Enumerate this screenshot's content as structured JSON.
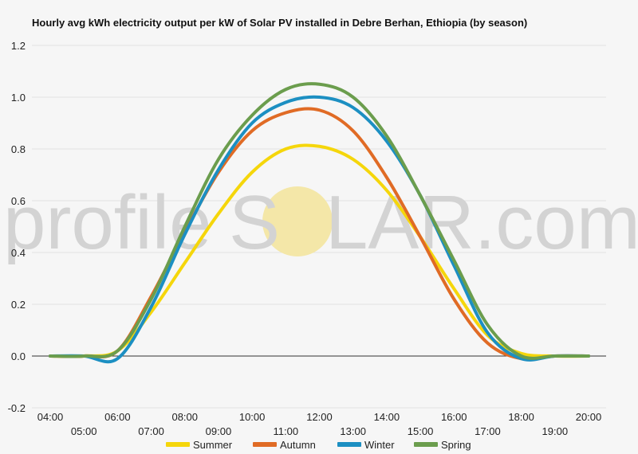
{
  "watermark": {
    "left": "profile",
    "middle": "S",
    "right": "LAR.com",
    "sun_color": "#f4e7a8"
  },
  "chart_data": {
    "type": "line",
    "title": "Hourly avg kWh electricity output per kW of Solar PV installed in Debre Berhan, Ethiopia (by season)",
    "xlabel": "",
    "ylabel": "",
    "ylim": [
      -0.2,
      1.2
    ],
    "yticks": [
      "-0.2",
      "0.0",
      "0.2",
      "0.4",
      "0.6",
      "0.8",
      "1.0",
      "1.2"
    ],
    "ytick_values": [
      -0.2,
      0,
      0.2,
      0.4,
      0.6,
      0.8,
      1.0,
      1.2
    ],
    "x": [
      "04:00",
      "05:00",
      "06:00",
      "07:00",
      "08:00",
      "09:00",
      "10:00",
      "11:00",
      "12:00",
      "13:00",
      "14:00",
      "15:00",
      "16:00",
      "17:00",
      "18:00",
      "19:00",
      "20:00"
    ],
    "grid": true,
    "legend_position": "bottom",
    "series": [
      {
        "name": "Summer",
        "color": "#f5d60b",
        "values": [
          0,
          0,
          0.02,
          0.17,
          0.36,
          0.55,
          0.71,
          0.8,
          0.81,
          0.76,
          0.64,
          0.46,
          0.26,
          0.08,
          0.01,
          0,
          0
        ]
      },
      {
        "name": "Autumn",
        "color": "#e06b25",
        "values": [
          0,
          0,
          0.02,
          0.23,
          0.48,
          0.71,
          0.87,
          0.94,
          0.95,
          0.87,
          0.69,
          0.46,
          0.22,
          0.05,
          -0.01,
          0,
          0
        ]
      },
      {
        "name": "Winter",
        "color": "#1c8fc2",
        "values": [
          0,
          0,
          -0.01,
          0.19,
          0.47,
          0.72,
          0.9,
          0.98,
          1.0,
          0.96,
          0.83,
          0.62,
          0.35,
          0.09,
          -0.01,
          0,
          0
        ]
      },
      {
        "name": "Spring",
        "color": "#6b9d4d",
        "values": [
          0,
          0,
          0.02,
          0.22,
          0.5,
          0.76,
          0.93,
          1.03,
          1.05,
          1.0,
          0.85,
          0.62,
          0.37,
          0.12,
          0,
          0,
          0
        ]
      }
    ]
  }
}
